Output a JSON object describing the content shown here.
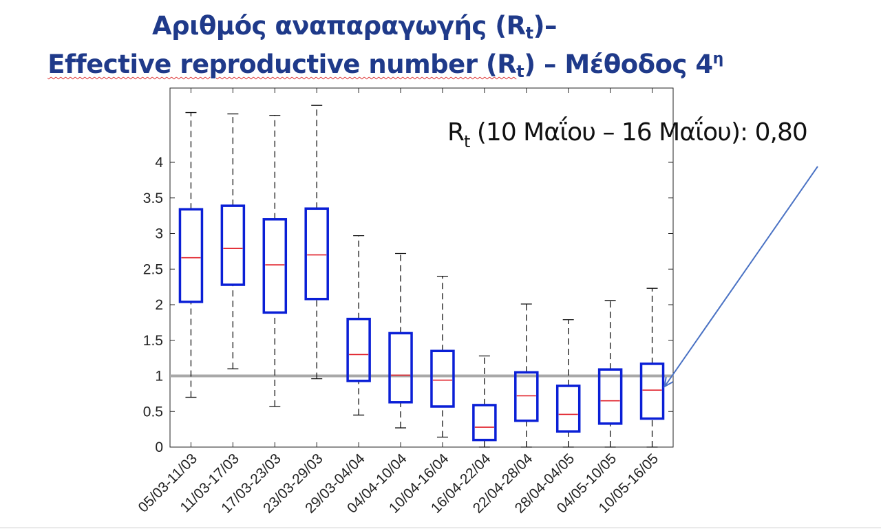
{
  "title": {
    "line1_main": "Αριθμός αναπαραγωγής (R",
    "line1_sub": "t",
    "line1_end": ")–",
    "line2_main": "Effective reproductive number (R",
    "line2_sub": "t",
    "line2_mid": ") – Μέθοδος 4",
    "line2_sup": "η"
  },
  "annotation": {
    "label_main": "R",
    "label_sub": "t",
    "label_rest": " (10 Μαΐου – 16 Μαΐου): 0,80"
  },
  "colors": {
    "title": "#1f3a8a",
    "box": "#0a1fd6",
    "median": "#e0202a",
    "reference_line": "#a8a8a8",
    "arrow": "#4a72c4"
  },
  "chart_data": {
    "type": "boxplot",
    "title": "",
    "xlabel": "",
    "ylabel": "",
    "ylim": [
      0,
      4.85
    ],
    "yticks": [
      0,
      0.5,
      1,
      1.5,
      2,
      2.5,
      3,
      3.5,
      4
    ],
    "ytick_labels": [
      "0",
      "0.5",
      "1",
      "1.5",
      "2",
      "2.5",
      "3",
      "3.5",
      "4"
    ],
    "reference_line": 1,
    "categories": [
      "05/03-11/03",
      "11/03-17/03",
      "17/03-23/03",
      "23/03-29/03",
      "29/03-04/04",
      "04/04-10/04",
      "10/04-16/04",
      "16/04-22/04",
      "22/04-28/04",
      "28/04-04/05",
      "04/05-10/05",
      "10/05-16/05"
    ],
    "whisker_low": [
      0.7,
      1.1,
      0.57,
      0.96,
      0.45,
      0.27,
      0.14,
      0.0,
      0.0,
      0.0,
      0.0,
      0.0
    ],
    "q1": [
      2.04,
      2.28,
      1.89,
      2.08,
      0.93,
      0.63,
      0.57,
      0.1,
      0.37,
      0.22,
      0.33,
      0.4
    ],
    "median": [
      2.66,
      2.79,
      2.56,
      2.7,
      1.3,
      1.01,
      0.94,
      0.28,
      0.72,
      0.46,
      0.65,
      0.8
    ],
    "q3": [
      3.34,
      3.39,
      3.2,
      3.35,
      1.8,
      1.6,
      1.35,
      0.59,
      1.05,
      0.86,
      1.09,
      1.17
    ],
    "whisker_high": [
      4.7,
      4.68,
      4.66,
      4.8,
      2.97,
      2.72,
      2.4,
      1.28,
      2.01,
      1.79,
      2.06,
      2.23
    ]
  }
}
